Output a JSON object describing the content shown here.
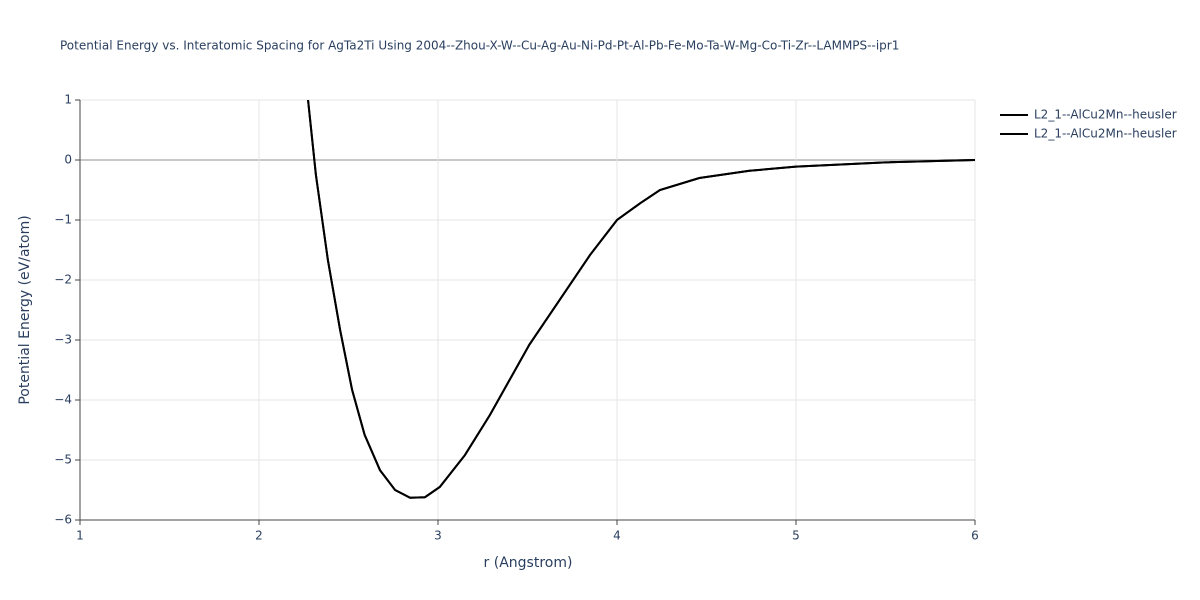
{
  "chart_data": {
    "type": "line",
    "title": "Potential Energy vs. Interatomic Spacing for AgTa2Ti Using 2004--Zhou-X-W--Cu-Ag-Au-Ni-Pd-Pt-Al-Pb-Fe-Mo-Ta-W-Mg-Co-Ti-Zr--LAMMPS--ipr1",
    "xlabel": "r (Angstrom)",
    "ylabel": "Potential Energy (eV/atom)",
    "x": [
      2.274,
      2.318,
      2.385,
      2.453,
      2.52,
      2.59,
      2.676,
      2.76,
      2.844,
      2.927,
      3.01,
      3.15,
      3.29,
      3.51,
      3.68,
      3.85,
      4.0,
      4.13,
      4.24,
      4.46,
      4.74,
      5.0,
      5.5,
      6.0
    ],
    "series": [
      {
        "name": "L2_1--AlCu2Mn--heusler",
        "color": "#000000",
        "values": [
          1,
          -0.25,
          -1.67,
          -2.83,
          -3.83,
          -4.58,
          -5.17,
          -5.5,
          -5.63,
          -5.62,
          -5.45,
          -4.92,
          -4.25,
          -3.08,
          -2.33,
          -1.58,
          -1.0,
          -0.72,
          -0.5,
          -0.3,
          -0.18,
          -0.11,
          -0.04,
          0.0
        ]
      },
      {
        "name": "L2_1--AlCu2Mn--heusler",
        "color": "#000000",
        "values": [
          1,
          -0.25,
          -1.67,
          -2.83,
          -3.83,
          -4.58,
          -5.17,
          -5.5,
          -5.63,
          -5.62,
          -5.45,
          -4.92,
          -4.25,
          -3.08,
          -2.33,
          -1.58,
          -1.0,
          -0.72,
          -0.5,
          -0.3,
          -0.18,
          -0.11,
          -0.04,
          0.0
        ]
      }
    ],
    "xlim": [
      1,
      6
    ],
    "xticks": [
      1,
      2,
      3,
      4,
      5,
      6
    ],
    "ylim": [
      -6,
      1
    ],
    "yticks": [
      {
        "value": -6,
        "label": "−6"
      },
      {
        "value": -5,
        "label": "−5"
      },
      {
        "value": -4,
        "label": "−4"
      },
      {
        "value": -3,
        "label": "−3"
      },
      {
        "value": -2,
        "label": "−2"
      },
      {
        "value": -1,
        "label": "−1"
      },
      0,
      1
    ],
    "grid": true,
    "legend": "right"
  }
}
